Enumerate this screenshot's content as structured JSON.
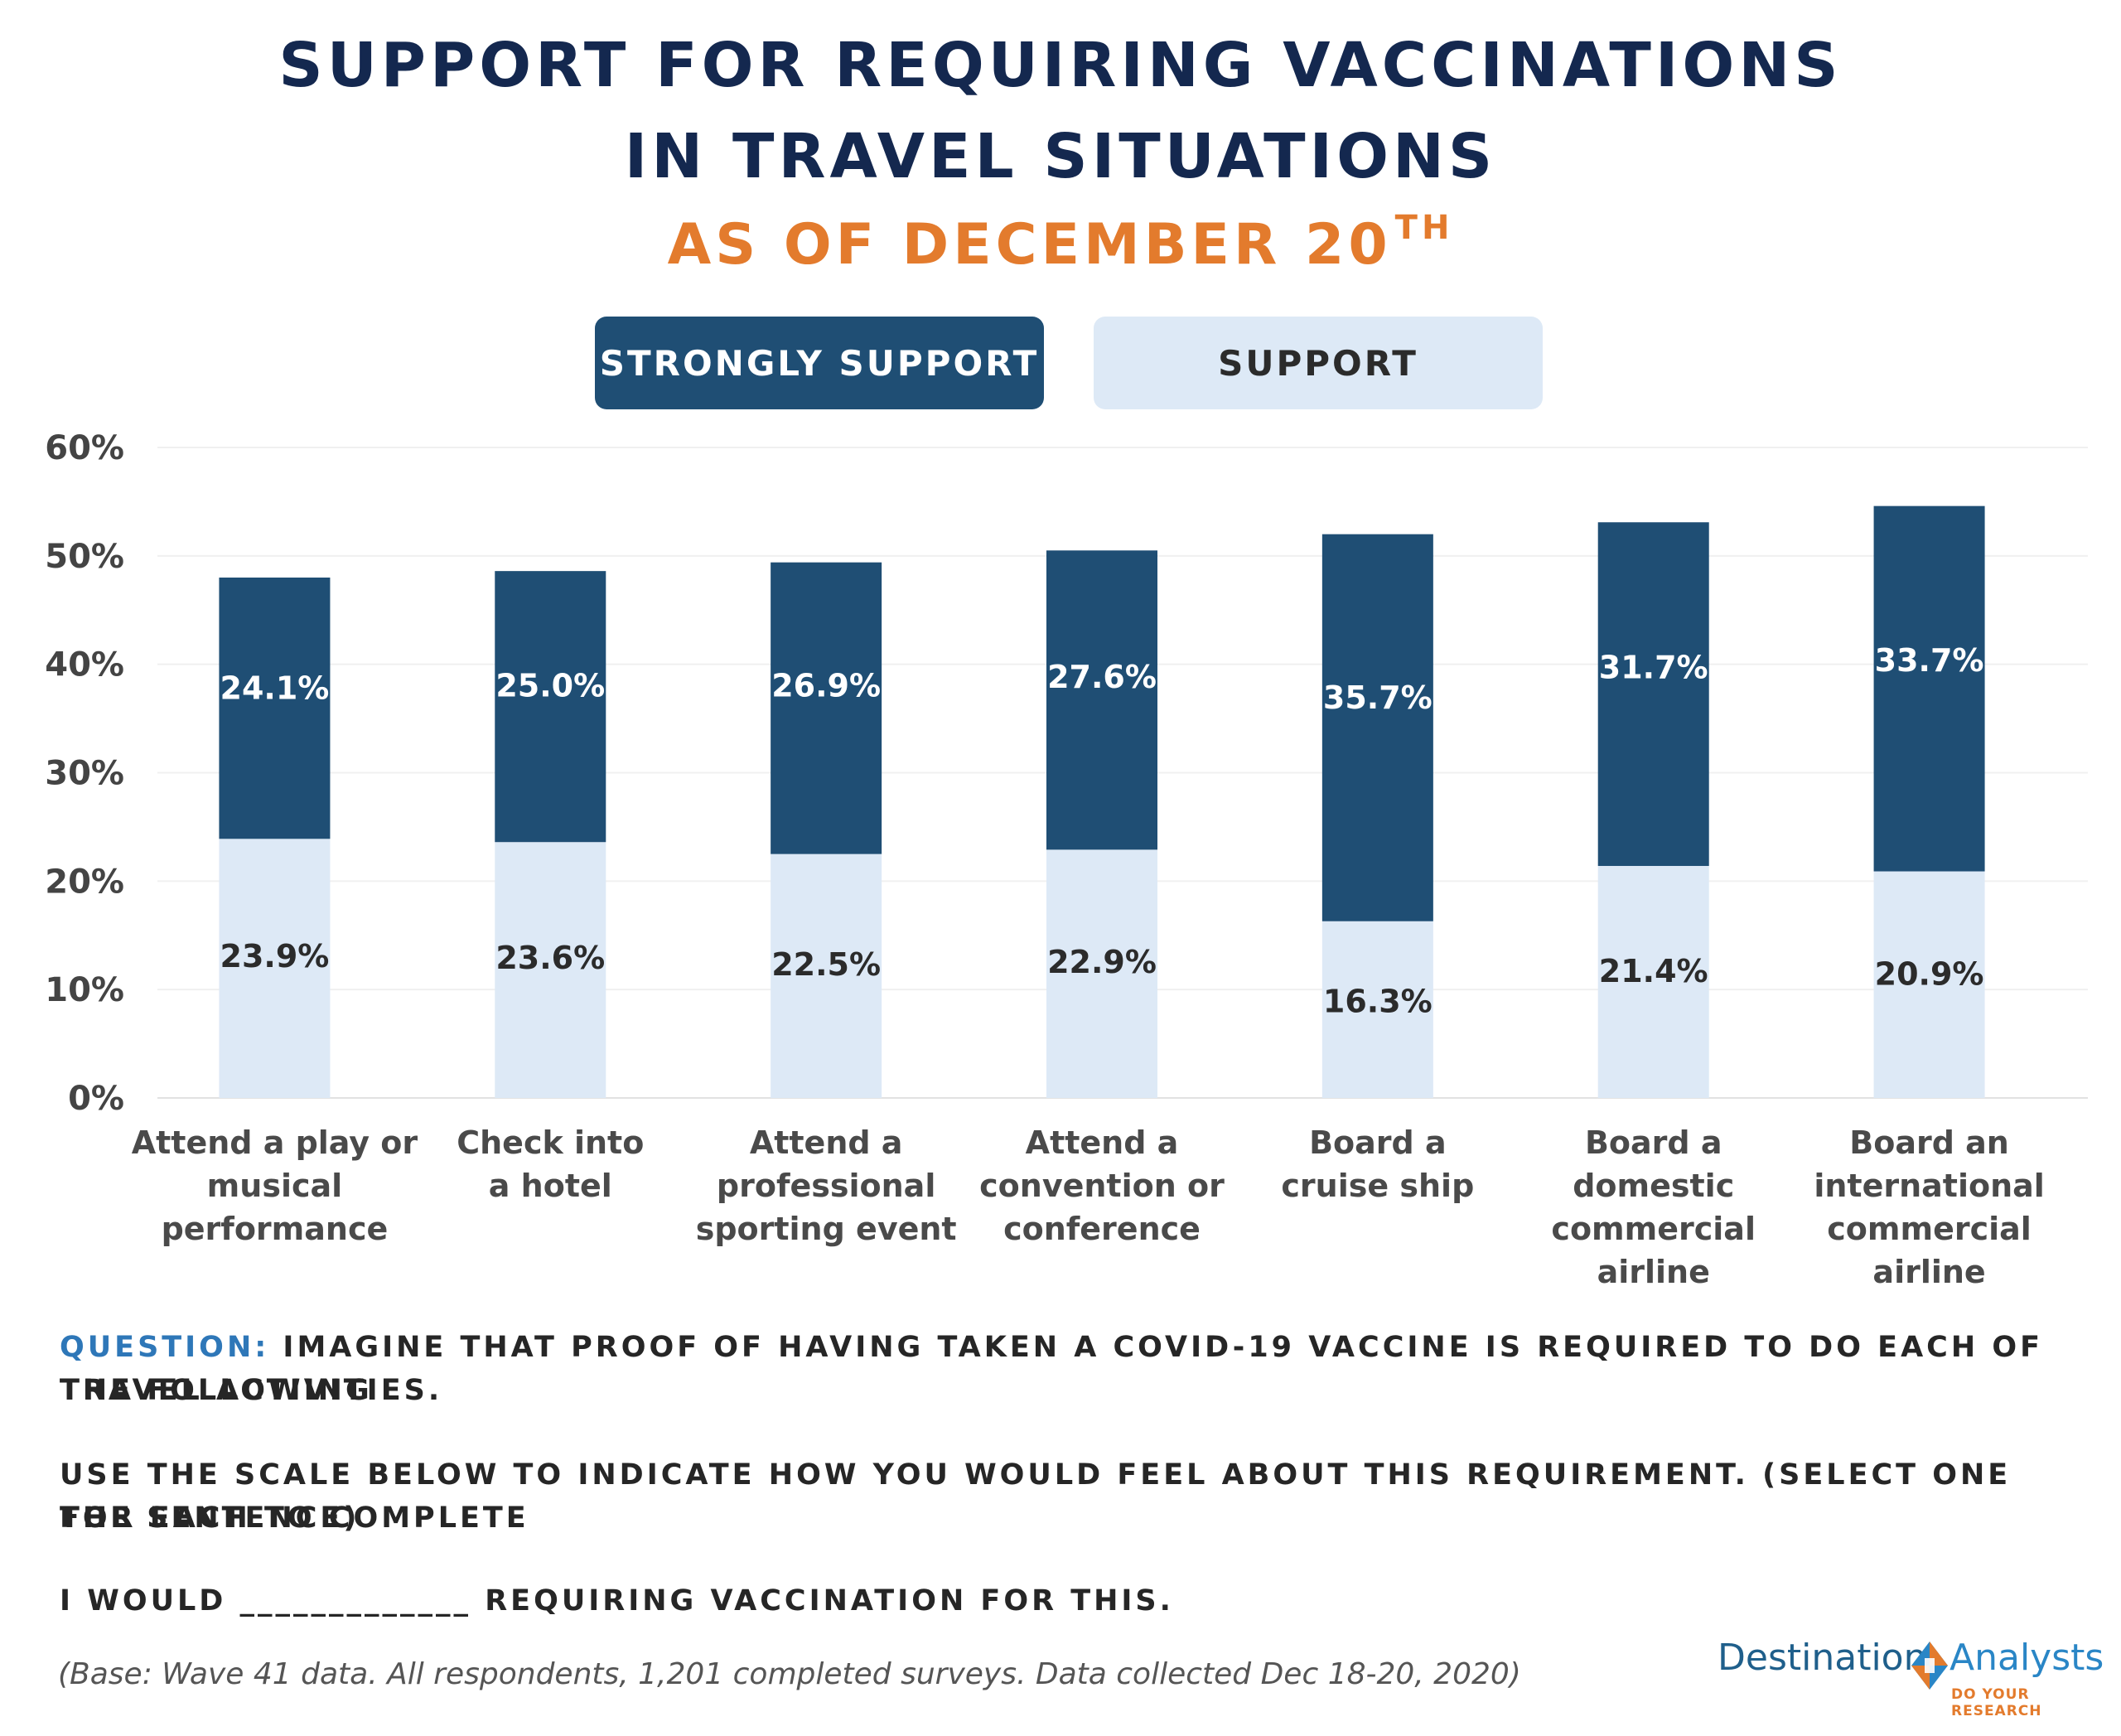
{
  "header": {
    "title_line1": "SUPPORT FOR REQUIRING VACCINATIONS",
    "title_line2": "IN TRAVEL SITUATIONS",
    "subtitle": "AS OF DECEMBER 20",
    "subtitle_sup": "TH"
  },
  "legend": {
    "strongly_support": "STRONGLY SUPPORT",
    "support": "SUPPORT"
  },
  "colors": {
    "strongly_support": "#1f4e74",
    "support": "#dde9f6",
    "title": "#14284f",
    "accent": "#e37b2d"
  },
  "chart_data": {
    "type": "bar",
    "stacked": true,
    "categories": [
      [
        "Attend a play or",
        "musical",
        "performance"
      ],
      [
        "Check into",
        "a hotel"
      ],
      [
        "Attend a",
        "professional",
        "sporting event"
      ],
      [
        "Attend a",
        "convention or",
        "conference"
      ],
      [
        "Board a",
        "cruise ship"
      ],
      [
        "Board a",
        "domestic",
        "commercial",
        "airline"
      ],
      [
        "Board an",
        "international",
        "commercial",
        "airline"
      ]
    ],
    "series": [
      {
        "name": "SUPPORT",
        "values": [
          23.9,
          23.6,
          22.5,
          22.9,
          16.3,
          21.4,
          20.9
        ],
        "labels": [
          "23.9%",
          "23.6%",
          "22.5%",
          "22.9%",
          "16.3%",
          "21.4%",
          "20.9%"
        ]
      },
      {
        "name": "STRONGLY SUPPORT",
        "values": [
          24.1,
          25.0,
          26.9,
          27.6,
          35.7,
          31.7,
          33.7
        ],
        "labels": [
          "24.1%",
          "25.0%",
          "26.9%",
          "27.6%",
          "35.7%",
          "31.7%",
          "33.7%"
        ]
      }
    ],
    "ylim": [
      0,
      60
    ],
    "yticks": [
      "0%",
      "10%",
      "20%",
      "30%",
      "40%",
      "50%",
      "60%"
    ],
    "grid": true,
    "legend_position": "top"
  },
  "question": {
    "label": "QUESTION:",
    "line1": "IMAGINE THAT PROOF OF HAVING TAKEN A COVID-19 VACCINE IS REQUIRED TO DO EACH OF THE FOLLOWING",
    "line2": "TRAVEL ACTIVITIES.",
    "line3": "USE THE SCALE BELOW TO INDICATE HOW YOU WOULD FEEL ABOUT THIS REQUIREMENT. (SELECT ONE FOR EACH TO COMPLETE",
    "line4": "THE SENTENCE)",
    "line5": "I WOULD _____________ REQUIRING VACCINATION FOR THIS."
  },
  "footnote": "(Base: Wave 41 data. All respondents, 1,201 completed surveys. Data collected Dec 18-20, 2020)",
  "logo": {
    "left": "Destination",
    "right": "Analysts",
    "tagline": "DO YOUR RESEARCH"
  }
}
